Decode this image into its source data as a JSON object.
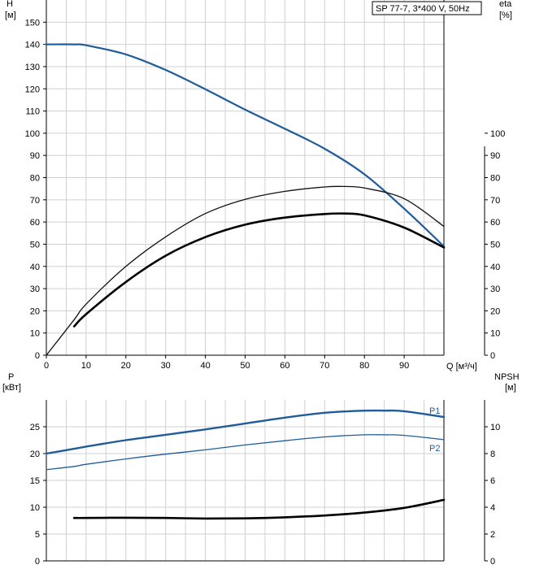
{
  "chart_data": [
    {
      "type": "line",
      "title": "SP 77-7, 3*400 V, 50Hz",
      "xlabel": "Q [м³/ч]",
      "ylabel_left": [
        "H",
        "[м]"
      ],
      "ylabel_right": [
        "eta",
        "[%]"
      ],
      "xlim": [
        0,
        100
      ],
      "ylim": [
        0,
        160
      ],
      "ylim_right": [
        0,
        160
      ],
      "grid": true,
      "x_ticks": [
        0,
        10,
        20,
        30,
        40,
        50,
        60,
        70,
        80,
        90
      ],
      "y_ticks_left": [
        0,
        10,
        20,
        30,
        40,
        50,
        60,
        70,
        80,
        90,
        100,
        110,
        120,
        130,
        140,
        150
      ],
      "y_ticks_right": [
        0,
        10,
        20,
        30,
        40,
        50,
        60,
        70,
        80,
        90,
        100
      ],
      "series": [
        {
          "color": "#1f5c99",
          "x": [
            0,
            7,
            10,
            20,
            30,
            40,
            50,
            60,
            70,
            80,
            90,
            100
          ],
          "y": [
            140,
            140,
            139.6,
            135.5,
            128.5,
            119.8,
            110.6,
            102,
            93,
            81.5,
            66,
            49
          ]
        },
        {
          "color": "#111111",
          "x": [
            0,
            7,
            10,
            20,
            30,
            40,
            50,
            60,
            70,
            75,
            80,
            90,
            100
          ],
          "y": [
            0,
            16,
            23,
            40,
            53.3,
            63.8,
            70.2,
            73.8,
            75.8,
            76,
            75.3,
            70.5,
            58
          ]
        },
        {
          "color": "#000000",
          "x": [
            7,
            10,
            20,
            30,
            40,
            50,
            60,
            70,
            75,
            80,
            90,
            100
          ],
          "y": [
            13,
            18.5,
            33,
            44.8,
            53.2,
            58.8,
            62,
            63.6,
            63.8,
            63,
            57.5,
            48.5
          ]
        }
      ]
    },
    {
      "type": "line",
      "xlabel": "",
      "ylabel_left": [
        "P",
        "[кВт]"
      ],
      "ylabel_right": [
        "NPSH",
        "[м]"
      ],
      "xlim": [
        0,
        100
      ],
      "ylim": [
        0,
        30
      ],
      "ylim_right": [
        0,
        12
      ],
      "grid": true,
      "y_ticks_left": [
        0,
        5,
        10,
        15,
        20,
        25
      ],
      "y_ticks_right": [
        0,
        2,
        4,
        6,
        8,
        10
      ],
      "series": [
        {
          "name": "P1",
          "color": "#1f5c99",
          "x": [
            0,
            7,
            10,
            20,
            30,
            40,
            50,
            60,
            70,
            80,
            85,
            90,
            100
          ],
          "y": [
            20,
            20.9,
            21.3,
            22.5,
            23.5,
            24.5,
            25.6,
            26.7,
            27.6,
            28,
            28,
            27.9,
            26.8
          ]
        },
        {
          "name": "P2",
          "color": "#1f5c99",
          "x": [
            0,
            7,
            10,
            20,
            30,
            40,
            50,
            60,
            70,
            80,
            85,
            90,
            100
          ],
          "y": [
            17,
            17.6,
            18,
            19,
            19.9,
            20.7,
            21.6,
            22.4,
            23.1,
            23.5,
            23.5,
            23.4,
            22.6
          ]
        },
        {
          "color": "#000000",
          "x": [
            7,
            10,
            20,
            30,
            40,
            50,
            60,
            70,
            80,
            90,
            100
          ],
          "y": [
            3.2,
            3.2,
            3.22,
            3.2,
            3.16,
            3.17,
            3.25,
            3.38,
            3.6,
            3.95,
            4.55
          ]
        }
      ]
    }
  ]
}
